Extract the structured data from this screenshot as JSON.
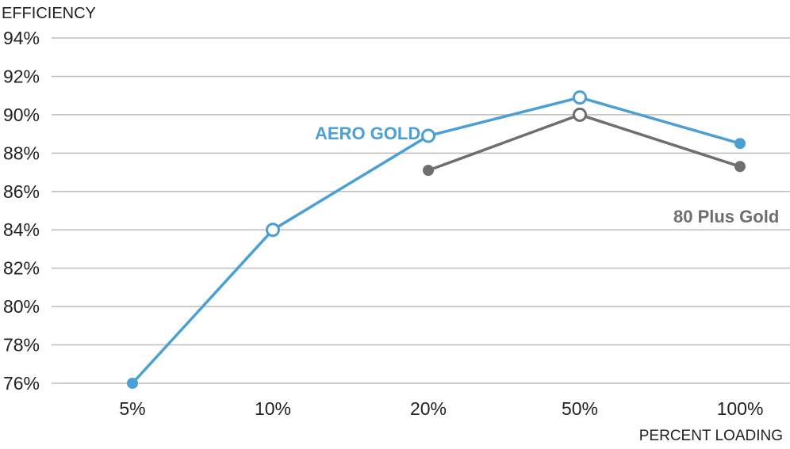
{
  "chart_data": {
    "type": "line",
    "ylabel": "EFFICIENCY",
    "xlabel": "PERCENT LOADING",
    "categories": [
      "5%",
      "10%",
      "20%",
      "50%",
      "100%"
    ],
    "yticks": [
      "94%",
      "92%",
      "90%",
      "88%",
      "86%",
      "84%",
      "82%",
      "80%",
      "78%",
      "76%"
    ],
    "ylim": [
      76,
      94
    ],
    "grid": true,
    "series": [
      {
        "name": "AERO GOLD",
        "color": "#4a9fd4",
        "values": [
          76.0,
          84.0,
          88.9,
          90.9,
          88.5
        ],
        "markers": [
          "filled",
          "hollow",
          "hollow",
          "hollow",
          "filled"
        ]
      },
      {
        "name": "80 Plus Gold",
        "color": "#6e6e6e",
        "values": [
          null,
          null,
          87.1,
          90.0,
          87.3
        ],
        "markers": [
          null,
          null,
          "filled",
          "hollow",
          "filled"
        ]
      }
    ]
  }
}
